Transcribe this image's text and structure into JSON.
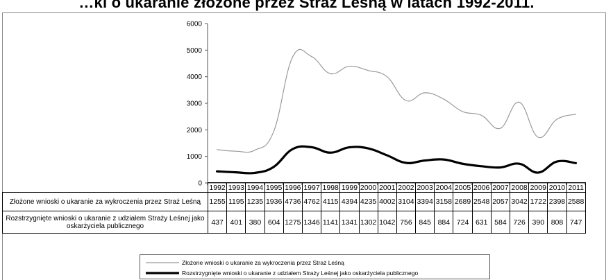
{
  "chart_data": {
    "type": "line",
    "title": "…ki o ukaranie złożone przez Straż Leśną w latach 1992-2011.",
    "categories": [
      "1992",
      "1993",
      "1994",
      "1995",
      "1996",
      "1997",
      "1998",
      "1999",
      "2000",
      "2001",
      "2002",
      "2003",
      "2004",
      "2005",
      "2006",
      "2007",
      "2008",
      "2009",
      "2010",
      "2011"
    ],
    "ylim": [
      0,
      6000
    ],
    "yticks": [
      "0",
      "1000",
      "2000",
      "3000",
      "4000",
      "5000",
      "6000"
    ],
    "grid": false,
    "legend_position": "bottom",
    "series": [
      {
        "name": "Złożone wnioski o ukaranie za wykroczenia przez Straż Leśną",
        "color": "#9a9a9a",
        "line_width": 1.2,
        "values": [
          1255,
          1195,
          1235,
          1936,
          4736,
          4762,
          4115,
          4394,
          4235,
          4002,
          3104,
          3394,
          3158,
          2689,
          2548,
          2057,
          3042,
          1722,
          2398,
          2588
        ]
      },
      {
        "name": "Rozstrzygnięte wnioski o ukaranie z udziałem Straży Leśnej jako oskarżyciela publicznego",
        "color": "#000000",
        "line_width": 3.2,
        "values": [
          437,
          401,
          380,
          604,
          1275,
          1346,
          1141,
          1341,
          1302,
          1042,
          756,
          845,
          884,
          724,
          631,
          584,
          726,
          390,
          808,
          747
        ]
      }
    ]
  },
  "table": {
    "row_labels": [
      "Złożone wnioski o ukaranie za wykroczenia przez Straż Leśną",
      "Rozstrzygnięte wnioski o ukaranie z udziałem Straży Leśnej jako oskarżyciela publicznego"
    ]
  },
  "legend": {
    "items": [
      {
        "label": "Złożone wnioski o ukaranie za wykroczenia przez Straż Leśną"
      },
      {
        "label": "Rozstrzygnięte wnioski o ukaranie z udziałem Straży Leśnej jako oskarżyciela publicznego"
      }
    ]
  }
}
